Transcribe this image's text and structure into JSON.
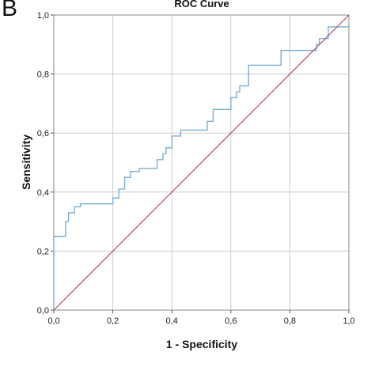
{
  "panel_label": "B",
  "chart_data": {
    "type": "line",
    "title": "ROC Curve",
    "xlabel": "1 - Specificity",
    "ylabel": "Sensitivity",
    "xlim": [
      0,
      1
    ],
    "ylim": [
      0,
      1
    ],
    "grid": true,
    "x_ticks": [
      "0,0",
      "0,2",
      "0,4",
      "0,6",
      "0,8",
      "1,0"
    ],
    "y_ticks": [
      "0,0",
      "0,2",
      "0,4",
      "0,6",
      "0,8",
      "1,0"
    ],
    "colors": {
      "roc": "#7aaed0",
      "reference": "#b0506e",
      "grid": "#cccccc",
      "frame": "#888888"
    },
    "series": [
      {
        "id": "roc",
        "x": [
          0,
          0,
          0.04,
          0.04,
          0.05,
          0.05,
          0.07,
          0.07,
          0.09,
          0.09,
          0.2,
          0.2,
          0.22,
          0.22,
          0.24,
          0.24,
          0.26,
          0.26,
          0.29,
          0.29,
          0.35,
          0.35,
          0.37,
          0.37,
          0.38,
          0.38,
          0.4,
          0.4,
          0.43,
          0.43,
          0.52,
          0.52,
          0.54,
          0.54,
          0.6,
          0.6,
          0.62,
          0.62,
          0.63,
          0.63,
          0.66,
          0.66,
          0.77,
          0.77,
          0.89,
          0.89,
          0.9,
          0.9,
          0.93,
          0.93,
          1.0
        ],
        "y": [
          0,
          0.25,
          0.25,
          0.3,
          0.3,
          0.33,
          0.33,
          0.35,
          0.35,
          0.36,
          0.36,
          0.38,
          0.38,
          0.41,
          0.41,
          0.45,
          0.45,
          0.47,
          0.47,
          0.48,
          0.48,
          0.51,
          0.51,
          0.53,
          0.53,
          0.55,
          0.55,
          0.59,
          0.59,
          0.61,
          0.61,
          0.64,
          0.64,
          0.68,
          0.68,
          0.72,
          0.72,
          0.74,
          0.74,
          0.76,
          0.76,
          0.83,
          0.83,
          0.88,
          0.88,
          0.9,
          0.9,
          0.92,
          0.92,
          0.96,
          0.96
        ]
      },
      {
        "id": "reference",
        "x": [
          0,
          1
        ],
        "y": [
          0,
          1
        ]
      }
    ]
  }
}
